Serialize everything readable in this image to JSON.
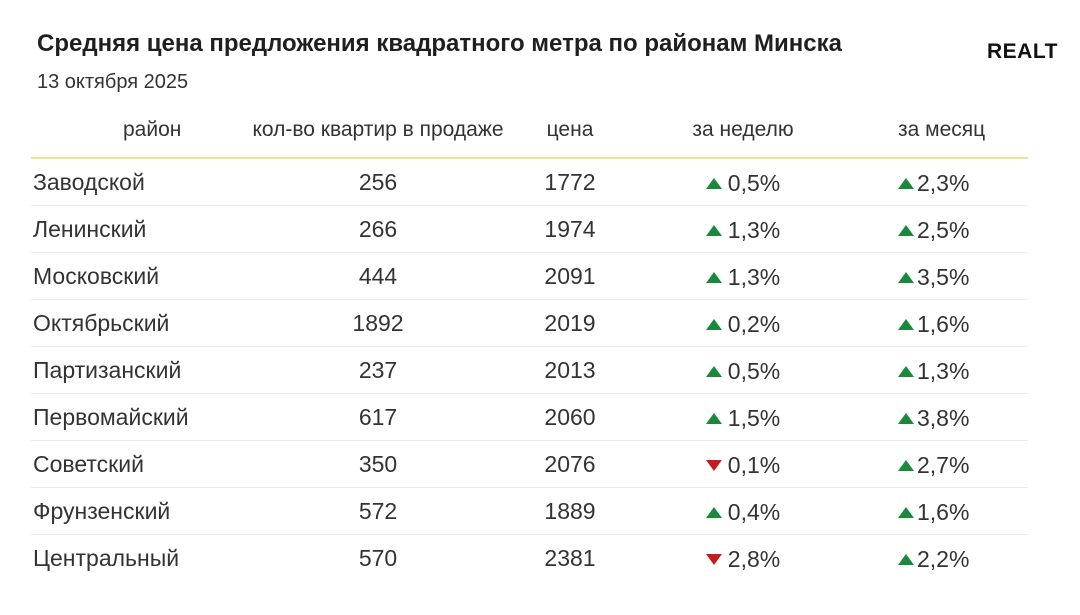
{
  "title": "Средняя цена предложения квадратного метра по районам Минска",
  "subtitle": "13 октября 2025",
  "brand": "REALT",
  "colors": {
    "up": "#1a8a3a",
    "down": "#c41c1c",
    "header_line": "#f5e08a"
  },
  "headers": {
    "district": "район",
    "count": "кол-во квартир в продаже",
    "price": "цена",
    "week": "за неделю",
    "month": "за месяц"
  },
  "chart_data": {
    "type": "table",
    "title": "Средняя цена предложения квадратного метра по районам Минска",
    "subtitle": "13 октября 2025",
    "columns": [
      "район",
      "кол-во квартир в продаже",
      "цена",
      "за неделю",
      "за месяц"
    ],
    "rows": [
      {
        "district": "Заводской",
        "count": "256",
        "price": "1772",
        "week": "0,5%",
        "week_dir": "up",
        "month": "2,3%",
        "month_dir": "up"
      },
      {
        "district": "Ленинский",
        "count": "266",
        "price": "1974",
        "week": "1,3%",
        "week_dir": "up",
        "month": "2,5%",
        "month_dir": "up"
      },
      {
        "district": "Московский",
        "count": "444",
        "price": "2091",
        "week": "1,3%",
        "week_dir": "up",
        "month": "3,5%",
        "month_dir": "up"
      },
      {
        "district": "Октябрьский",
        "count": "1892",
        "price": "2019",
        "week": "0,2%",
        "week_dir": "up",
        "month": "1,6%",
        "month_dir": "up"
      },
      {
        "district": "Партизанский",
        "count": "237",
        "price": "2013",
        "week": "0,5%",
        "week_dir": "up",
        "month": "1,3%",
        "month_dir": "up"
      },
      {
        "district": "Первомайский",
        "count": "617",
        "price": "2060",
        "week": "1,5%",
        "week_dir": "up",
        "month": "3,8%",
        "month_dir": "up"
      },
      {
        "district": "Советский",
        "count": "350",
        "price": "2076",
        "week": "0,1%",
        "week_dir": "down",
        "month": "2,7%",
        "month_dir": "up"
      },
      {
        "district": "Фрунзенский",
        "count": "572",
        "price": "1889",
        "week": "0,4%",
        "week_dir": "up",
        "month": "1,6%",
        "month_dir": "up"
      },
      {
        "district": "Центральный",
        "count": "570",
        "price": "2381",
        "week": "2,8%",
        "week_dir": "down",
        "month": "2,2%",
        "month_dir": "up"
      }
    ]
  }
}
